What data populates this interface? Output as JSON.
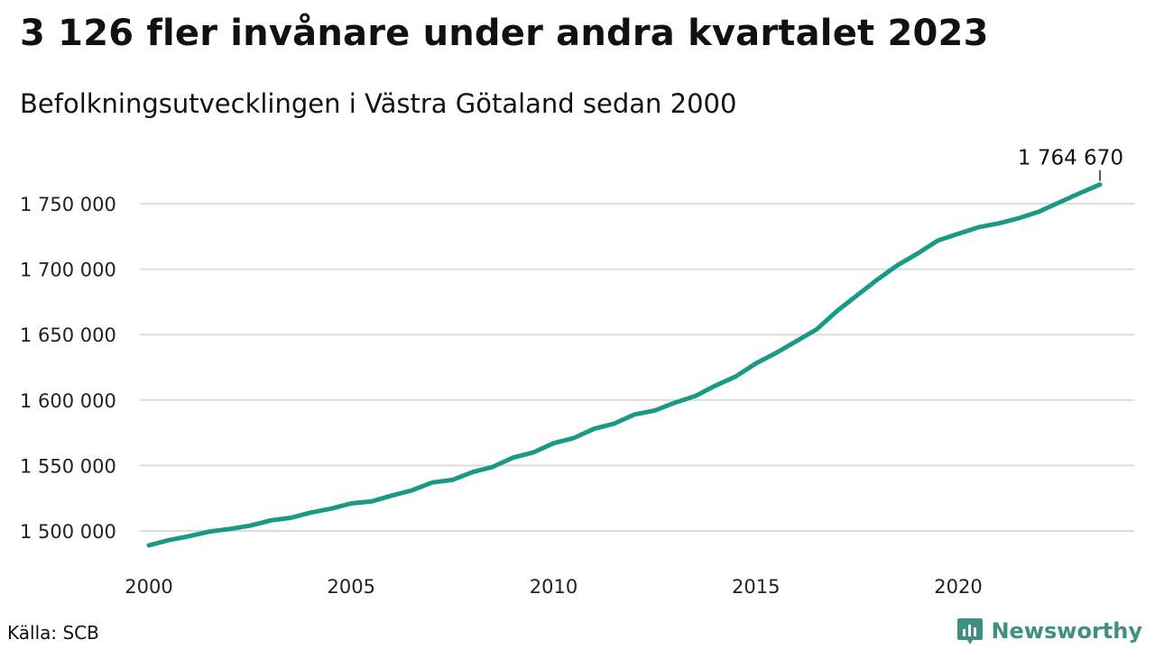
{
  "header": {
    "title": "3 126 fler invånare under andra kvartalet 2023",
    "subtitle": "Befolkningsutvecklingen i Västra Götaland sedan 2000"
  },
  "footer": {
    "source": "Källa: SCB",
    "brand": "Newsworthy",
    "brand_icon": "bar-chart-logo-icon"
  },
  "colors": {
    "line": "#1a9a86",
    "grid": "#dcdcdc",
    "brand": "#3f8f82"
  },
  "chart_data": {
    "type": "line",
    "title": "3 126 fler invånare under andra kvartalet 2023",
    "subtitle": "Befolkningsutvecklingen i Västra Götaland sedan 2000",
    "xlabel": "",
    "ylabel": "",
    "xlim": [
      2000,
      2024
    ],
    "ylim": [
      1485000,
      1770000
    ],
    "x_ticks": [
      2000,
      2005,
      2010,
      2015,
      2020
    ],
    "y_ticks": [
      1500000,
      1550000,
      1600000,
      1650000,
      1700000,
      1750000
    ],
    "y_tick_labels": [
      "1 500 000",
      "1 550 000",
      "1 600 000",
      "1 650 000",
      "1 700 000",
      "1 750 000"
    ],
    "grid": "horizontal",
    "end_label": "1 764 670",
    "series": [
      {
        "x": [
          2000.0,
          2000.5,
          2001.0,
          2001.5,
          2002.0,
          2002.5,
          2003.0,
          2003.5,
          2004.0,
          2004.5,
          2005.0,
          2005.5,
          2006.0,
          2006.5,
          2007.0,
          2007.5,
          2008.0,
          2008.5,
          2009.0,
          2009.5,
          2010.0,
          2010.5,
          2011.0,
          2011.5,
          2012.0,
          2012.5,
          2013.0,
          2013.5,
          2014.0,
          2014.5,
          2015.0,
          2015.5,
          2016.0,
          2016.5,
          2017.0,
          2017.5,
          2018.0,
          2018.5,
          2019.0,
          2019.5,
          2020.0,
          2020.5,
          2021.0,
          2021.5,
          2022.0,
          2022.5,
          2023.0,
          2023.5
        ],
        "y": [
          1489000,
          1493000,
          1496000,
          1499500,
          1501500,
          1504000,
          1508000,
          1510000,
          1514000,
          1517000,
          1521000,
          1522500,
          1527000,
          1531000,
          1537000,
          1539000,
          1545000,
          1549000,
          1556000,
          1560000,
          1567000,
          1571000,
          1578000,
          1582000,
          1589000,
          1592000,
          1598000,
          1603000,
          1611000,
          1618000,
          1628000,
          1636000,
          1645000,
          1654000,
          1668000,
          1680000,
          1692000,
          1703000,
          1712000,
          1722000,
          1727000,
          1732000,
          1735000,
          1739000,
          1744000,
          1751000,
          1758000,
          1764670
        ]
      }
    ]
  }
}
